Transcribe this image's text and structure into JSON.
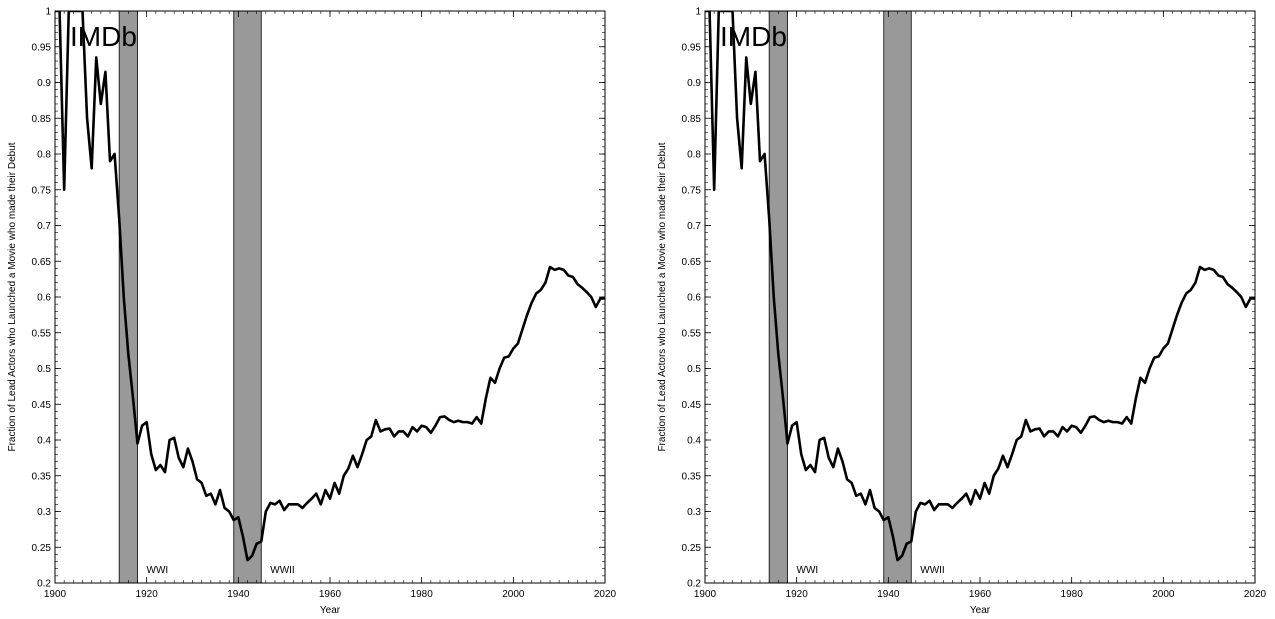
{
  "chart_data": [
    {
      "type": "line",
      "watermark": "IMDb",
      "xlabel": "Year",
      "ylabel": "Fraction of Lead Actors who Launched a Movie who made their Debut",
      "xlim": [
        1900,
        2020
      ],
      "ylim": [
        0.2,
        1
      ],
      "xticks": [
        1900,
        1920,
        1940,
        1960,
        1980,
        2000,
        2020
      ],
      "xtick_labels": [
        "1900",
        "1920",
        "1940",
        "1960",
        "1980",
        "2000",
        "2020"
      ],
      "yticks": [
        0.2,
        0.25,
        0.3,
        0.35,
        0.4,
        0.45,
        0.5,
        0.55,
        0.6,
        0.65,
        0.7,
        0.75,
        0.8,
        0.85,
        0.9,
        0.95,
        1
      ],
      "ytick_labels": [
        "0.2",
        "0.25",
        "0.3",
        "0.35",
        "0.4",
        "0.45",
        "0.5",
        "0.55",
        "0.6",
        "0.65",
        "0.7",
        "0.75",
        "0.8",
        "0.85",
        "0.9",
        "0.95",
        "1"
      ],
      "grid": false,
      "shaded_regions": [
        {
          "label": "WWI",
          "start": 1914,
          "end": 1918
        },
        {
          "label": "WWII",
          "start": 1939,
          "end": 1945
        }
      ],
      "series": [
        {
          "x": [
            1900,
            1901,
            1902,
            1903,
            1904,
            1905,
            1906,
            1907,
            1908,
            1909,
            1910,
            1911,
            1912,
            1913,
            1914,
            1915,
            1916,
            1917,
            1918,
            1919,
            1920,
            1921,
            1922,
            1923,
            1924,
            1925,
            1926,
            1927,
            1928,
            1929,
            1930,
            1931,
            1932,
            1933,
            1934,
            1935,
            1936,
            1937,
            1938,
            1939,
            1940,
            1941,
            1942,
            1943,
            1944,
            1945,
            1946,
            1947,
            1948,
            1949,
            1950,
            1951,
            1952,
            1953,
            1954,
            1955,
            1956,
            1957,
            1958,
            1959,
            1960,
            1961,
            1962,
            1963,
            1964,
            1965,
            1966,
            1967,
            1968,
            1969,
            1970,
            1971,
            1972,
            1973,
            1974,
            1975,
            1976,
            1977,
            1978,
            1979,
            1980,
            1981,
            1982,
            1983,
            1984,
            1985,
            1986,
            1987,
            1988,
            1989,
            1990,
            1991,
            1992,
            1993,
            1994,
            1995,
            1996,
            1997,
            1998,
            1999,
            2000,
            2001,
            2002,
            2003,
            2004,
            2005,
            2006,
            2007,
            2008,
            2009,
            2010,
            2011,
            2012,
            2013,
            2014,
            2015,
            2016,
            2017,
            2018,
            2019,
            2020
          ],
          "values": [
            1.0,
            1.0,
            0.75,
            1.0,
            1.0,
            1.0,
            1.0,
            0.85,
            0.78,
            0.935,
            0.87,
            0.915,
            0.79,
            0.8,
            0.71,
            0.6,
            0.52,
            0.46,
            0.395,
            0.42,
            0.425,
            0.38,
            0.358,
            0.365,
            0.355,
            0.4,
            0.403,
            0.375,
            0.362,
            0.388,
            0.37,
            0.345,
            0.34,
            0.322,
            0.325,
            0.31,
            0.33,
            0.305,
            0.3,
            0.288,
            0.292,
            0.265,
            0.232,
            0.238,
            0.255,
            0.258,
            0.3,
            0.312,
            0.31,
            0.315,
            0.302,
            0.31,
            0.31,
            0.31,
            0.305,
            0.312,
            0.318,
            0.325,
            0.31,
            0.33,
            0.318,
            0.34,
            0.325,
            0.35,
            0.36,
            0.378,
            0.362,
            0.38,
            0.4,
            0.405,
            0.428,
            0.412,
            0.415,
            0.416,
            0.405,
            0.412,
            0.412,
            0.405,
            0.418,
            0.412,
            0.42,
            0.418,
            0.41,
            0.42,
            0.432,
            0.433,
            0.428,
            0.425,
            0.427,
            0.425,
            0.425,
            0.423,
            0.432,
            0.423,
            0.458,
            0.487,
            0.48,
            0.5,
            0.515,
            0.517,
            0.528,
            0.535,
            0.555,
            0.575,
            0.592,
            0.605,
            0.61,
            0.62,
            0.642,
            0.638,
            0.64,
            0.638,
            0.63,
            0.628,
            0.618,
            0.613,
            0.607,
            0.6,
            0.586,
            0.598,
            0.598
          ]
        }
      ]
    },
    {
      "type": "line",
      "watermark": "IMDb",
      "xlabel": "Year",
      "ylabel": "Fraction of Lead Actors who Launched a Movie who made their Debut",
      "xlim": [
        1900,
        2020
      ],
      "ylim": [
        0.2,
        1
      ],
      "xticks": [
        1900,
        1920,
        1940,
        1960,
        1980,
        2000,
        2020
      ],
      "xtick_labels": [
        "1900",
        "1920",
        "1940",
        "1960",
        "1980",
        "2000",
        "2020"
      ],
      "yticks": [
        0.2,
        0.25,
        0.3,
        0.35,
        0.4,
        0.45,
        0.5,
        0.55,
        0.6,
        0.65,
        0.7,
        0.75,
        0.8,
        0.85,
        0.9,
        0.95,
        1
      ],
      "ytick_labels": [
        "0.2",
        "0.25",
        "0.3",
        "0.35",
        "0.4",
        "0.45",
        "0.5",
        "0.55",
        "0.6",
        "0.65",
        "0.7",
        "0.75",
        "0.8",
        "0.85",
        "0.9",
        "0.95",
        "1"
      ],
      "grid": false,
      "shaded_regions": [
        {
          "label": "WWI",
          "start": 1914,
          "end": 1918
        },
        {
          "label": "WWII",
          "start": 1939,
          "end": 1945
        }
      ],
      "series": [
        {
          "x": [
            1900,
            1901,
            1902,
            1903,
            1904,
            1905,
            1906,
            1907,
            1908,
            1909,
            1910,
            1911,
            1912,
            1913,
            1914,
            1915,
            1916,
            1917,
            1918,
            1919,
            1920,
            1921,
            1922,
            1923,
            1924,
            1925,
            1926,
            1927,
            1928,
            1929,
            1930,
            1931,
            1932,
            1933,
            1934,
            1935,
            1936,
            1937,
            1938,
            1939,
            1940,
            1941,
            1942,
            1943,
            1944,
            1945,
            1946,
            1947,
            1948,
            1949,
            1950,
            1951,
            1952,
            1953,
            1954,
            1955,
            1956,
            1957,
            1958,
            1959,
            1960,
            1961,
            1962,
            1963,
            1964,
            1965,
            1966,
            1967,
            1968,
            1969,
            1970,
            1971,
            1972,
            1973,
            1974,
            1975,
            1976,
            1977,
            1978,
            1979,
            1980,
            1981,
            1982,
            1983,
            1984,
            1985,
            1986,
            1987,
            1988,
            1989,
            1990,
            1991,
            1992,
            1993,
            1994,
            1995,
            1996,
            1997,
            1998,
            1999,
            2000,
            2001,
            2002,
            2003,
            2004,
            2005,
            2006,
            2007,
            2008,
            2009,
            2010,
            2011,
            2012,
            2013,
            2014,
            2015,
            2016,
            2017,
            2018,
            2019,
            2020
          ],
          "values": [
            1.0,
            1.0,
            0.75,
            1.0,
            1.0,
            1.0,
            1.0,
            0.85,
            0.78,
            0.935,
            0.87,
            0.915,
            0.79,
            0.8,
            0.71,
            0.6,
            0.52,
            0.46,
            0.395,
            0.42,
            0.425,
            0.38,
            0.358,
            0.365,
            0.355,
            0.4,
            0.403,
            0.375,
            0.362,
            0.388,
            0.37,
            0.345,
            0.34,
            0.322,
            0.325,
            0.31,
            0.33,
            0.305,
            0.3,
            0.288,
            0.292,
            0.265,
            0.232,
            0.238,
            0.255,
            0.258,
            0.3,
            0.312,
            0.31,
            0.315,
            0.302,
            0.31,
            0.31,
            0.31,
            0.305,
            0.312,
            0.318,
            0.325,
            0.31,
            0.33,
            0.318,
            0.34,
            0.325,
            0.35,
            0.36,
            0.378,
            0.362,
            0.38,
            0.4,
            0.405,
            0.428,
            0.412,
            0.415,
            0.416,
            0.405,
            0.412,
            0.412,
            0.405,
            0.418,
            0.412,
            0.42,
            0.418,
            0.41,
            0.42,
            0.432,
            0.433,
            0.428,
            0.425,
            0.427,
            0.425,
            0.425,
            0.423,
            0.432,
            0.423,
            0.458,
            0.487,
            0.48,
            0.5,
            0.515,
            0.517,
            0.528,
            0.535,
            0.555,
            0.575,
            0.592,
            0.605,
            0.61,
            0.62,
            0.642,
            0.638,
            0.64,
            0.638,
            0.63,
            0.628,
            0.618,
            0.613,
            0.607,
            0.6,
            0.586,
            0.598,
            0.598
          ]
        }
      ]
    }
  ]
}
